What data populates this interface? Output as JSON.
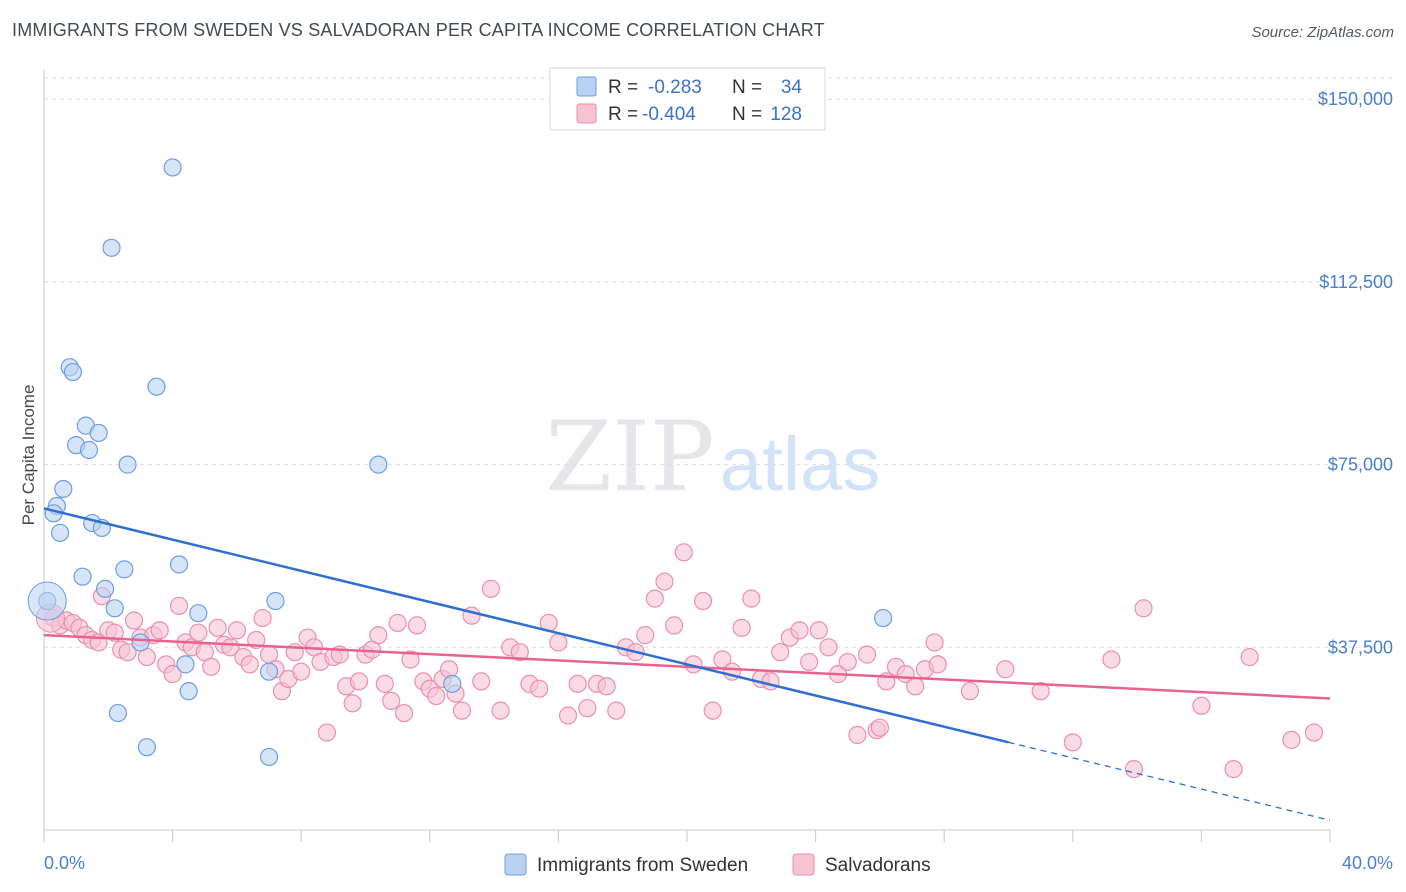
{
  "header": {
    "title": "IMMIGRANTS FROM SWEDEN VS SALVADORAN PER CAPITA INCOME CORRELATION CHART",
    "source": "Source: ZipAtlas.com"
  },
  "watermark": {
    "zip": "ZIP",
    "atlas": "atlas"
  },
  "colors": {
    "blue_fill": "#b9d2f2",
    "blue_stroke": "#6f9ee0",
    "blue_line": "#2f6fd0",
    "pink_fill": "#f7c3d3",
    "pink_stroke": "#ec8fae",
    "pink_line": "#e8628f",
    "tick_label": "#4a7fcf",
    "grid": "#dddddd"
  },
  "chart_data": {
    "type": "scatter",
    "title": "IMMIGRANTS FROM SWEDEN VS SALVADORAN PER CAPITA INCOME CORRELATION CHART",
    "xlabel": "",
    "ylabel": "Per Capita Income",
    "xlim": [
      0,
      40
    ],
    "ylim": [
      0,
      156000
    ],
    "x_tick_labels": [
      "0.0%",
      "40.0%"
    ],
    "y_ticks": [
      37500,
      75000,
      112500,
      150000
    ],
    "y_tick_labels": [
      "$37,500",
      "$75,000",
      "$112,500",
      "$150,000"
    ],
    "grid": "horizontal dashed",
    "legend_position": "top-center",
    "stats": [
      {
        "r_label": "R =",
        "r": "-0.283",
        "n_label": "N =",
        "n": "34"
      },
      {
        "r_label": "R =",
        "r": "-0.404",
        "n_label": "N =",
        "n": "128"
      }
    ],
    "series": [
      {
        "name": "Immigrants from Sweden",
        "points": [
          [
            4.0,
            136000
          ],
          [
            2.1,
            119500
          ],
          [
            0.8,
            95000
          ],
          [
            0.9,
            94000
          ],
          [
            3.5,
            91000
          ],
          [
            1.3,
            83000
          ],
          [
            1.7,
            81500
          ],
          [
            1.0,
            79000
          ],
          [
            1.4,
            78000
          ],
          [
            2.6,
            75000
          ],
          [
            10.4,
            75000
          ],
          [
            0.6,
            70000
          ],
          [
            0.4,
            66500
          ],
          [
            0.3,
            65000
          ],
          [
            1.5,
            63000
          ],
          [
            1.8,
            62000
          ],
          [
            0.5,
            61000
          ],
          [
            2.5,
            53500
          ],
          [
            4.2,
            54500
          ],
          [
            1.2,
            52000
          ],
          [
            0.1,
            47000
          ],
          [
            1.9,
            49500
          ],
          [
            7.2,
            47000
          ],
          [
            2.2,
            45500
          ],
          [
            4.8,
            44500
          ],
          [
            26.1,
            43500
          ],
          [
            3.0,
            38500
          ],
          [
            4.4,
            34000
          ],
          [
            7.0,
            32500
          ],
          [
            4.5,
            28500
          ],
          [
            12.7,
            30000
          ],
          [
            2.3,
            24000
          ],
          [
            3.2,
            17000
          ],
          [
            7.0,
            15000
          ]
        ],
        "trend": {
          "x": [
            0,
            30
          ],
          "y": [
            66000,
            18000
          ],
          "dashed_to": [
            40,
            2000
          ]
        }
      },
      {
        "name": "Salvadorans",
        "points": [
          [
            0.3,
            43500
          ],
          [
            0.5,
            42000
          ],
          [
            0.7,
            43000
          ],
          [
            0.9,
            42500
          ],
          [
            1.1,
            41500
          ],
          [
            1.3,
            40000
          ],
          [
            1.5,
            39000
          ],
          [
            1.7,
            38500
          ],
          [
            1.8,
            48000
          ],
          [
            2.0,
            41000
          ],
          [
            2.2,
            40500
          ],
          [
            2.4,
            37000
          ],
          [
            2.6,
            36500
          ],
          [
            2.8,
            43000
          ],
          [
            3.0,
            39500
          ],
          [
            3.2,
            35500
          ],
          [
            3.4,
            40000
          ],
          [
            3.6,
            41000
          ],
          [
            3.8,
            34000
          ],
          [
            4.0,
            32000
          ],
          [
            4.2,
            46000
          ],
          [
            4.4,
            38500
          ],
          [
            4.6,
            37500
          ],
          [
            4.8,
            40500
          ],
          [
            5.0,
            36500
          ],
          [
            5.2,
            33500
          ],
          [
            5.4,
            41500
          ],
          [
            5.6,
            38000
          ],
          [
            5.8,
            37500
          ],
          [
            6.0,
            41000
          ],
          [
            6.2,
            35500
          ],
          [
            6.4,
            34000
          ],
          [
            6.6,
            39000
          ],
          [
            6.8,
            43500
          ],
          [
            7.0,
            36000
          ],
          [
            7.2,
            33000
          ],
          [
            7.4,
            28500
          ],
          [
            7.6,
            31000
          ],
          [
            7.8,
            36500
          ],
          [
            8.0,
            32500
          ],
          [
            8.2,
            39500
          ],
          [
            8.4,
            37500
          ],
          [
            8.6,
            34500
          ],
          [
            8.8,
            20000
          ],
          [
            9.0,
            35500
          ],
          [
            9.2,
            36000
          ],
          [
            9.4,
            29500
          ],
          [
            9.6,
            26000
          ],
          [
            9.8,
            30500
          ],
          [
            10.0,
            36000
          ],
          [
            10.2,
            37000
          ],
          [
            10.4,
            40000
          ],
          [
            10.6,
            30000
          ],
          [
            10.8,
            26500
          ],
          [
            11.0,
            42500
          ],
          [
            11.2,
            24000
          ],
          [
            11.4,
            35000
          ],
          [
            11.6,
            42000
          ],
          [
            11.8,
            30500
          ],
          [
            12.0,
            29000
          ],
          [
            12.2,
            27500
          ],
          [
            12.4,
            31000
          ],
          [
            12.6,
            33000
          ],
          [
            12.8,
            28000
          ],
          [
            13.0,
            24500
          ],
          [
            13.3,
            44000
          ],
          [
            13.6,
            30500
          ],
          [
            13.9,
            49500
          ],
          [
            14.2,
            24500
          ],
          [
            14.5,
            37500
          ],
          [
            14.8,
            36500
          ],
          [
            15.1,
            30000
          ],
          [
            15.4,
            29000
          ],
          [
            15.7,
            42500
          ],
          [
            16.0,
            38500
          ],
          [
            16.3,
            23500
          ],
          [
            16.6,
            30000
          ],
          [
            16.9,
            25000
          ],
          [
            17.2,
            30000
          ],
          [
            17.5,
            29500
          ],
          [
            17.8,
            24500
          ],
          [
            18.1,
            37500
          ],
          [
            18.4,
            36500
          ],
          [
            18.7,
            40000
          ],
          [
            19.0,
            47500
          ],
          [
            19.3,
            51000
          ],
          [
            19.6,
            42000
          ],
          [
            19.9,
            57000
          ],
          [
            20.2,
            34000
          ],
          [
            20.5,
            47000
          ],
          [
            20.8,
            24500
          ],
          [
            21.1,
            35000
          ],
          [
            21.4,
            32500
          ],
          [
            21.7,
            41500
          ],
          [
            22.0,
            47500
          ],
          [
            22.3,
            31000
          ],
          [
            22.6,
            30500
          ],
          [
            22.9,
            36500
          ],
          [
            23.2,
            39500
          ],
          [
            23.5,
            41000
          ],
          [
            23.8,
            34500
          ],
          [
            24.1,
            41000
          ],
          [
            24.4,
            37500
          ],
          [
            24.7,
            32000
          ],
          [
            25.0,
            34500
          ],
          [
            25.3,
            19500
          ],
          [
            25.6,
            36000
          ],
          [
            25.9,
            20500
          ],
          [
            26.2,
            30500
          ],
          [
            26.5,
            33500
          ],
          [
            26.8,
            32000
          ],
          [
            27.1,
            29500
          ],
          [
            27.4,
            33000
          ],
          [
            27.7,
            38500
          ],
          [
            27.8,
            34000
          ],
          [
            28.8,
            28500
          ],
          [
            29.9,
            33000
          ],
          [
            31.0,
            28500
          ],
          [
            32.0,
            18000
          ],
          [
            33.2,
            35000
          ],
          [
            33.9,
            12500
          ],
          [
            34.2,
            45500
          ],
          [
            36.0,
            25500
          ],
          [
            37.0,
            12500
          ],
          [
            37.5,
            35500
          ],
          [
            38.8,
            18500
          ],
          [
            39.5,
            20000
          ],
          [
            26.0,
            21000
          ]
        ],
        "trend": {
          "x": [
            0,
            40
          ],
          "y": [
            40000,
            27000
          ]
        }
      }
    ]
  }
}
